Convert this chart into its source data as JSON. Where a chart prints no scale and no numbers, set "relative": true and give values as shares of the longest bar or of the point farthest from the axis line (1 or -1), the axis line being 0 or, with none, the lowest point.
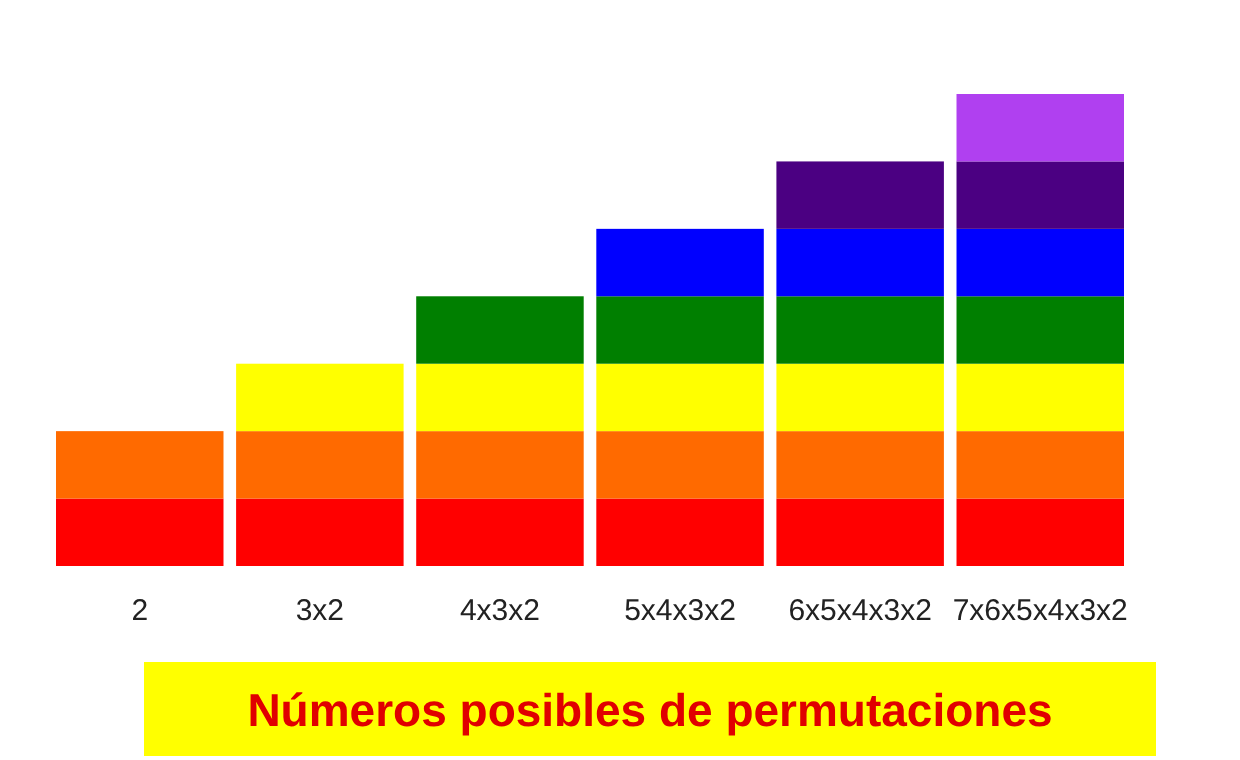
{
  "chart_data": {
    "type": "bar",
    "title": "Números posibles de permutaciones",
    "categories": [
      "2",
      "3x2",
      "4x3x2",
      "5x4x3x2",
      "6x5x4x3x2",
      "7x6x5x4x3x2"
    ],
    "stacked": true,
    "relative": true,
    "series": [
      {
        "color": "#ff0000",
        "values": [
          0.142857,
          0.142857,
          0.142857,
          0.142857,
          0.142857,
          0.142857
        ]
      },
      {
        "color": "#ff6a00",
        "values": [
          0.142857,
          0.142857,
          0.142857,
          0.142857,
          0.142857,
          0.142857
        ]
      },
      {
        "color": "#ffff00",
        "values": [
          null,
          0.142857,
          0.142857,
          0.142857,
          0.142857,
          0.142857
        ]
      },
      {
        "color": "#007f00",
        "values": [
          null,
          null,
          0.142857,
          0.142857,
          0.142857,
          0.142857
        ]
      },
      {
        "color": "#0000ff",
        "values": [
          null,
          null,
          null,
          0.142857,
          0.142857,
          0.142857
        ]
      },
      {
        "color": "#4b0082",
        "values": [
          null,
          null,
          null,
          null,
          0.142857,
          0.142857
        ]
      },
      {
        "color": "#b040f0",
        "values": [
          null,
          null,
          null,
          null,
          null,
          0.142857
        ]
      }
    ]
  }
}
